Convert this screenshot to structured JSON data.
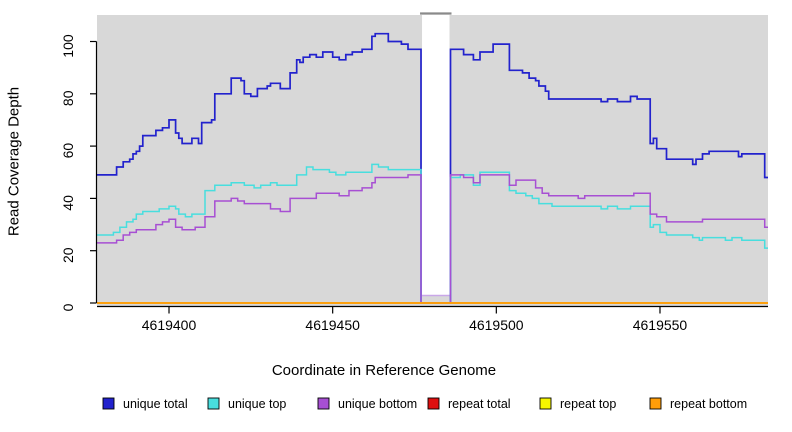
{
  "figure": {
    "x_axis_label": "Coordinate in Reference Genome",
    "y_axis_label": "Read Coverage Depth"
  },
  "chart_data": {
    "type": "line",
    "subtype": "step-after",
    "title": "",
    "xlabel": "Coordinate in Reference Genome",
    "ylabel": "Read Coverage Depth",
    "xlim": [
      4619378,
      4619583
    ],
    "ylim": [
      0,
      110
    ],
    "x_ticks": [
      4619400,
      4619450,
      4619500,
      4619550
    ],
    "y_ticks": [
      0,
      20,
      40,
      60,
      80,
      100
    ],
    "grid": false,
    "plot_background": "#d8d8d8",
    "masked_region": {
      "x_start": 4619477,
      "x_end": 4619486,
      "fill": "#ffffff",
      "top_border": "#8a8a8a",
      "bottom_border": "#c9a7e8"
    },
    "legend_position": "bottom",
    "series": [
      {
        "name": "unique total",
        "color": "#2222cd",
        "points": [
          [
            4619378,
            49
          ],
          [
            4619384,
            52
          ],
          [
            4619386,
            54
          ],
          [
            4619388,
            55
          ],
          [
            4619389,
            57
          ],
          [
            4619390,
            58
          ],
          [
            4619391,
            60
          ],
          [
            4619392,
            64
          ],
          [
            4619396,
            66
          ],
          [
            4619398,
            67
          ],
          [
            4619400,
            70
          ],
          [
            4619402,
            65
          ],
          [
            4619403,
            63
          ],
          [
            4619404,
            61
          ],
          [
            4619407,
            63
          ],
          [
            4619409,
            61
          ],
          [
            4619410,
            69
          ],
          [
            4619413,
            70
          ],
          [
            4619414,
            80
          ],
          [
            4619419,
            86
          ],
          [
            4619422,
            85
          ],
          [
            4619423,
            80
          ],
          [
            4619425,
            79
          ],
          [
            4619427,
            82
          ],
          [
            4619430,
            83
          ],
          [
            4619431,
            84
          ],
          [
            4619434,
            82
          ],
          [
            4619437,
            88
          ],
          [
            4619439,
            93
          ],
          [
            4619440,
            92
          ],
          [
            4619441,
            94
          ],
          [
            4619443,
            95
          ],
          [
            4619445,
            94
          ],
          [
            4619447,
            96
          ],
          [
            4619450,
            94
          ],
          [
            4619452,
            93
          ],
          [
            4619454,
            95
          ],
          [
            4619456,
            96
          ],
          [
            4619459,
            97
          ],
          [
            4619462,
            102
          ],
          [
            4619463,
            103
          ],
          [
            4619467,
            100
          ],
          [
            4619471,
            99
          ],
          [
            4619473,
            97
          ],
          [
            4619477,
            0
          ],
          [
            4619486,
            97
          ],
          [
            4619490,
            95
          ],
          [
            4619493,
            93
          ],
          [
            4619495,
            96
          ],
          [
            4619499,
            99
          ],
          [
            4619504,
            89
          ],
          [
            4619508,
            88
          ],
          [
            4619510,
            86
          ],
          [
            4619512,
            85
          ],
          [
            4619513,
            83
          ],
          [
            4619515,
            81
          ],
          [
            4619516,
            78
          ],
          [
            4619532,
            77
          ],
          [
            4619534,
            78
          ],
          [
            4619537,
            77
          ],
          [
            4619541,
            79
          ],
          [
            4619543,
            78
          ],
          [
            4619547,
            61
          ],
          [
            4619548,
            63
          ],
          [
            4619549,
            59
          ],
          [
            4619552,
            55
          ],
          [
            4619560,
            53
          ],
          [
            4619561,
            55
          ],
          [
            4619563,
            57
          ],
          [
            4619565,
            58
          ],
          [
            4619574,
            56
          ],
          [
            4619575,
            57
          ],
          [
            4619582,
            48
          ]
        ]
      },
      {
        "name": "unique top",
        "color": "#48dede",
        "points": [
          [
            4619378,
            26
          ],
          [
            4619383,
            27
          ],
          [
            4619385,
            29
          ],
          [
            4619387,
            31
          ],
          [
            4619389,
            32
          ],
          [
            4619390,
            34
          ],
          [
            4619392,
            35
          ],
          [
            4619397,
            36
          ],
          [
            4619400,
            37
          ],
          [
            4619402,
            36
          ],
          [
            4619403,
            34
          ],
          [
            4619405,
            33
          ],
          [
            4619407,
            34
          ],
          [
            4619411,
            43
          ],
          [
            4619414,
            45
          ],
          [
            4619419,
            46
          ],
          [
            4619423,
            45
          ],
          [
            4619426,
            44
          ],
          [
            4619428,
            45
          ],
          [
            4619431,
            46
          ],
          [
            4619433,
            45
          ],
          [
            4619439,
            49
          ],
          [
            4619442,
            52
          ],
          [
            4619444,
            51
          ],
          [
            4619449,
            50
          ],
          [
            4619451,
            49
          ],
          [
            4619454,
            50
          ],
          [
            4619462,
            53
          ],
          [
            4619464,
            52
          ],
          [
            4619467,
            51
          ],
          [
            4619477,
            0
          ],
          [
            4619486,
            48
          ],
          [
            4619489,
            49
          ],
          [
            4619493,
            45
          ],
          [
            4619495,
            50
          ],
          [
            4619504,
            43
          ],
          [
            4619506,
            42
          ],
          [
            4619509,
            41
          ],
          [
            4619511,
            40
          ],
          [
            4619513,
            38
          ],
          [
            4619517,
            37
          ],
          [
            4619532,
            36
          ],
          [
            4619534,
            37
          ],
          [
            4619537,
            36
          ],
          [
            4619541,
            37
          ],
          [
            4619547,
            29
          ],
          [
            4619548,
            30
          ],
          [
            4619550,
            27
          ],
          [
            4619552,
            26
          ],
          [
            4619560,
            25
          ],
          [
            4619562,
            24
          ],
          [
            4619563,
            25
          ],
          [
            4619570,
            24
          ],
          [
            4619572,
            25
          ],
          [
            4619575,
            24
          ],
          [
            4619582,
            21
          ]
        ]
      },
      {
        "name": "unique bottom",
        "color": "#a74fd3",
        "points": [
          [
            4619378,
            23
          ],
          [
            4619384,
            24
          ],
          [
            4619386,
            26
          ],
          [
            4619388,
            27
          ],
          [
            4619390,
            28
          ],
          [
            4619396,
            30
          ],
          [
            4619398,
            31
          ],
          [
            4619400,
            32
          ],
          [
            4619402,
            29
          ],
          [
            4619404,
            28
          ],
          [
            4619408,
            29
          ],
          [
            4619411,
            33
          ],
          [
            4619414,
            39
          ],
          [
            4619419,
            40
          ],
          [
            4619421,
            39
          ],
          [
            4619423,
            38
          ],
          [
            4619431,
            36
          ],
          [
            4619434,
            35
          ],
          [
            4619437,
            40
          ],
          [
            4619445,
            42
          ],
          [
            4619452,
            41
          ],
          [
            4619455,
            43
          ],
          [
            4619459,
            44
          ],
          [
            4619462,
            46
          ],
          [
            4619463,
            48
          ],
          [
            4619473,
            49
          ],
          [
            4619477,
            0
          ],
          [
            4619486,
            49
          ],
          [
            4619490,
            48
          ],
          [
            4619493,
            46
          ],
          [
            4619495,
            49
          ],
          [
            4619504,
            45
          ],
          [
            4619506,
            47
          ],
          [
            4619512,
            44
          ],
          [
            4619514,
            42
          ],
          [
            4619516,
            41
          ],
          [
            4619525,
            40
          ],
          [
            4619527,
            41
          ],
          [
            4619542,
            42
          ],
          [
            4619547,
            34
          ],
          [
            4619549,
            33
          ],
          [
            4619552,
            31
          ],
          [
            4619563,
            32
          ],
          [
            4619582,
            29
          ]
        ]
      },
      {
        "name": "repeat total",
        "color": "#de1010",
        "points": [
          [
            4619378,
            0
          ]
        ]
      },
      {
        "name": "repeat top",
        "color": "#f5f500",
        "points": [
          [
            4619378,
            0
          ]
        ]
      },
      {
        "name": "repeat bottom",
        "color": "#ff9d09",
        "points": [
          [
            4619378,
            0
          ]
        ]
      }
    ]
  }
}
